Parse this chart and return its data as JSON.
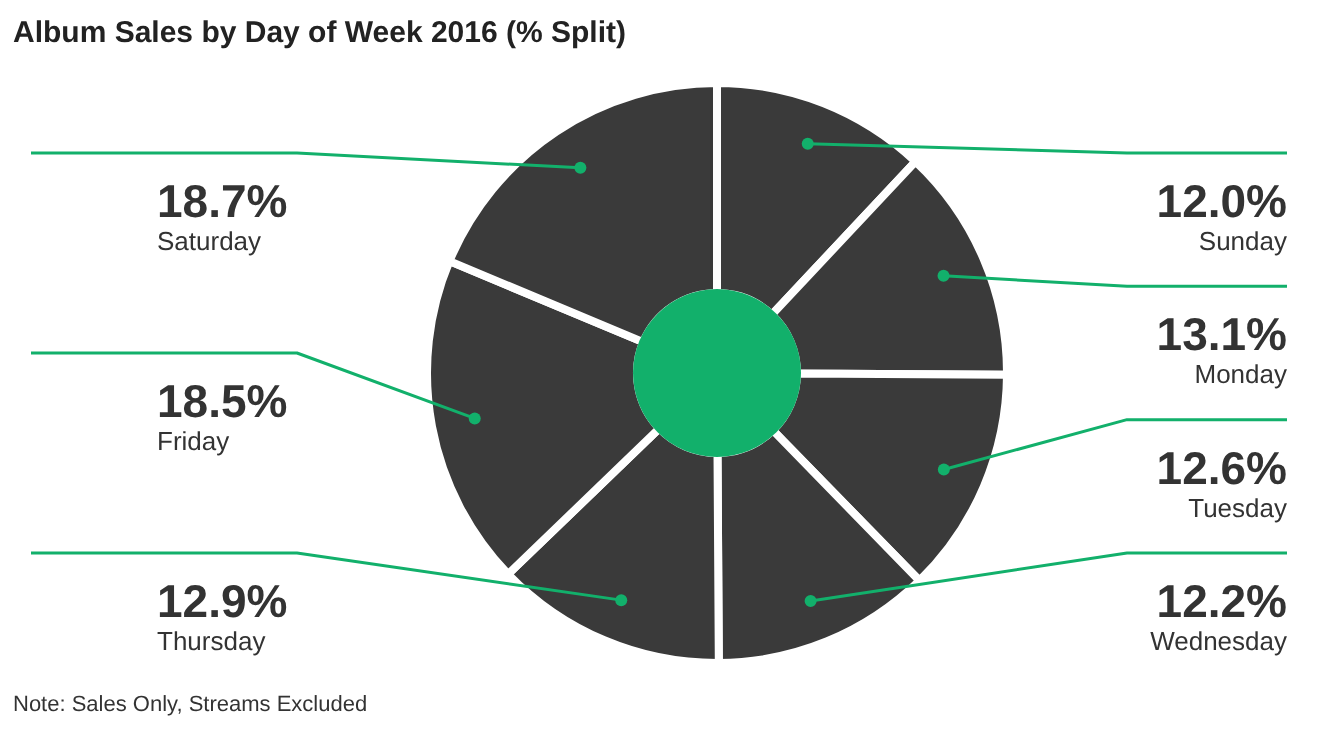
{
  "chart_data": {
    "type": "donut",
    "title": "Album Sales by Day of Week 2016 (% Split)",
    "categories": [
      "Sunday",
      "Monday",
      "Tuesday",
      "Wednesday",
      "Thursday",
      "Friday",
      "Saturday"
    ],
    "values": [
      12.0,
      13.1,
      12.6,
      12.2,
      12.9,
      18.5,
      18.7
    ],
    "value_labels": [
      "12.0%",
      "13.1%",
      "12.6%",
      "12.2%",
      "12.9%",
      "18.5%",
      "18.7%"
    ],
    "colors": [
      "#3a3a3a",
      "#3a3a3a",
      "#3a3a3a",
      "#3a3a3a",
      "#3a3a3a",
      "#3a3a3a",
      "#3a3a3a"
    ],
    "annotations": [
      "Note: Sales Only, Streams Excluded"
    ],
    "legend": false
  }
}
